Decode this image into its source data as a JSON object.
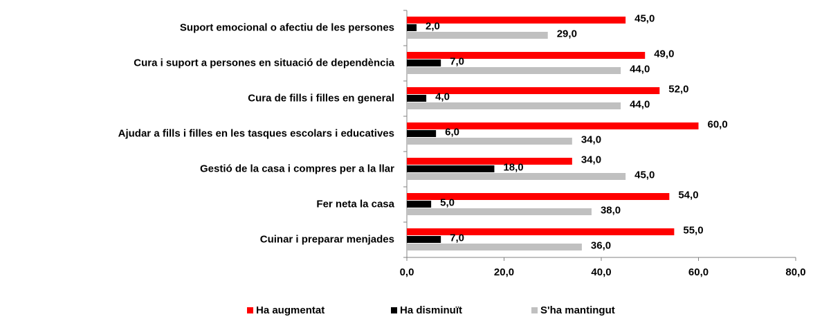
{
  "chart_data": {
    "type": "hbar",
    "categories": [
      "Suport emocional o afectiu de les persones",
      "Cura i suport a persones en situació de dependència",
      "Cura de fills i filles en general",
      "Ajudar a fills i filles en les tasques escolars i educatives",
      "Gestió de la casa i compres per a la llar",
      "Fer neta la casa",
      "Cuinar i preparar menjades"
    ],
    "series": [
      {
        "name": "Ha augmentat",
        "color": "#ff0000",
        "values": [
          45,
          49,
          52,
          60,
          34,
          54,
          55
        ],
        "value_labels": [
          "45,0",
          "49,0",
          "52,0",
          "60,0",
          "34,0",
          "54,0",
          "55,0"
        ]
      },
      {
        "name": "Ha disminuït",
        "color": "#000000",
        "values": [
          2,
          7,
          4,
          6,
          18,
          5,
          7
        ],
        "value_labels": [
          "2,0",
          "7,0",
          "4,0",
          "6,0",
          "18,0",
          "5,0",
          "7,0"
        ]
      },
      {
        "name": "S'ha mantingut",
        "color": "#c0c0c0",
        "values": [
          29,
          44,
          44,
          34,
          45,
          38,
          36
        ],
        "value_labels": [
          "29,0",
          "44,0",
          "44,0",
          "34,0",
          "45,0",
          "38,0",
          "36,0"
        ]
      }
    ],
    "xlim": [
      0,
      80
    ],
    "xticks": [
      {
        "value": 0,
        "label": "0,0"
      },
      {
        "value": 20,
        "label": "20,0"
      },
      {
        "value": 40,
        "label": "40,0"
      },
      {
        "value": 60,
        "label": "60,0"
      },
      {
        "value": 80,
        "label": "80,0"
      }
    ],
    "legend": "bottom"
  }
}
